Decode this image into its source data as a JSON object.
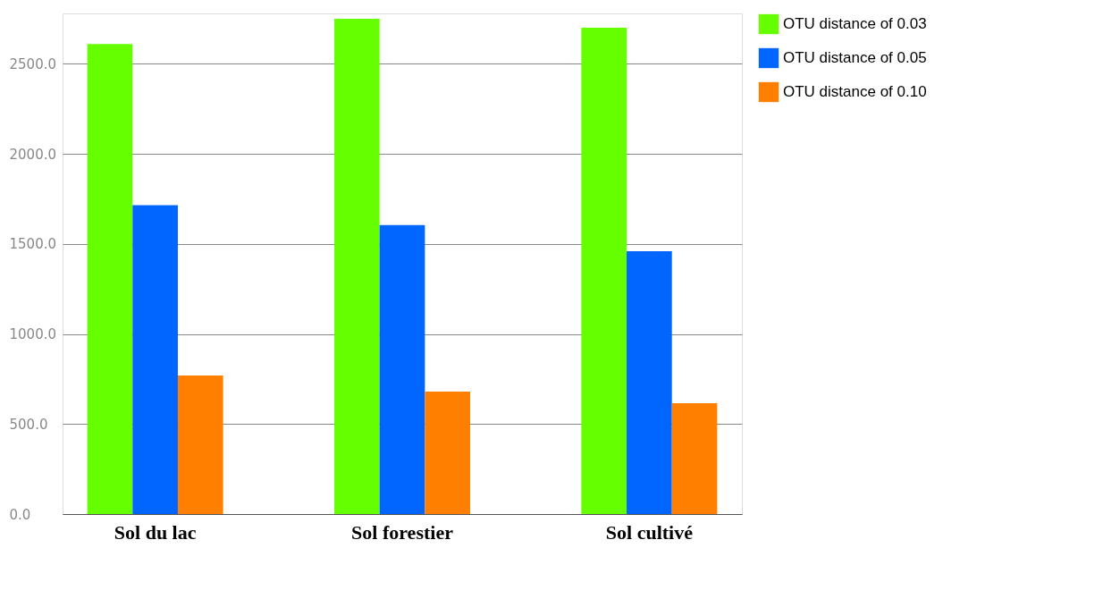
{
  "chart_data": {
    "type": "bar",
    "categories": [
      "Sol du lac",
      "Sol forestier",
      "Sol cultivé"
    ],
    "series": [
      {
        "name": "OTU distance of 0.03",
        "color": "#66ff00",
        "values": [
          2610,
          2750,
          2700
        ]
      },
      {
        "name": "OTU distance of 0.05",
        "color": "#0066ff",
        "values": [
          1715,
          1605,
          1460
        ]
      },
      {
        "name": "OTU distance of 0.10",
        "color": "#ff8000",
        "values": [
          770,
          680,
          615
        ]
      }
    ],
    "ylim": [
      0,
      2780
    ],
    "yticks": [
      {
        "value": 0,
        "label": "0.0"
      },
      {
        "value": 500,
        "label": "500.0"
      },
      {
        "value": 1000,
        "label": "1000.0"
      },
      {
        "value": 1500,
        "label": "1500.0"
      },
      {
        "value": 2000,
        "label": "2000.0"
      },
      {
        "value": 2500,
        "label": "2500.0"
      }
    ],
    "grid": "y",
    "legend": "right"
  }
}
